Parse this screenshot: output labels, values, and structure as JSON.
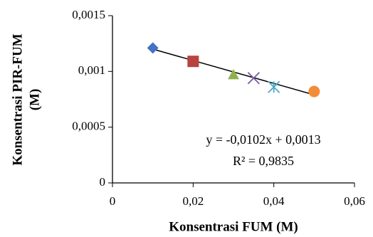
{
  "chart_data": {
    "type": "scatter",
    "x_label": "Konsentrasi FUM (M)",
    "y_label": [
      "Konsentrasi  PIR-FUM",
      "(M)"
    ],
    "x": [
      0.01,
      0.02,
      0.03,
      0.035,
      0.04,
      0.05
    ],
    "values": [
      0.00121,
      0.00109,
      0.00097,
      0.00094,
      0.00086,
      0.00082
    ],
    "colors": [
      "#4472c4",
      "#b8433f",
      "#8fb04f",
      "#7a5c9e",
      "#4bacc6",
      "#f28c38"
    ],
    "markers": [
      "diamond",
      "square",
      "triangle",
      "x",
      "star",
      "circle"
    ],
    "trendline": {
      "x": [
        0.01,
        0.05
      ],
      "values": [
        0.0012,
        0.00079
      ],
      "color": "#000000"
    },
    "annotations": [
      "y = -0,0102x + 0,0013",
      "R² = 0,9835"
    ],
    "xlim": [
      0,
      0.06
    ],
    "xticks": [
      0,
      {
        "value": 0.02,
        "label": "0,02"
      },
      {
        "value": 0.04,
        "label": "0,04"
      },
      {
        "value": 0.06,
        "label": "0,06"
      }
    ],
    "ylim": [
      0,
      0.0015
    ],
    "yticks": [
      0,
      {
        "value": 0.0005,
        "label": "0,0005"
      },
      {
        "value": 0.001,
        "label": "0,001"
      },
      {
        "value": 0.0015,
        "label": "0,0015"
      }
    ],
    "grid": false
  }
}
